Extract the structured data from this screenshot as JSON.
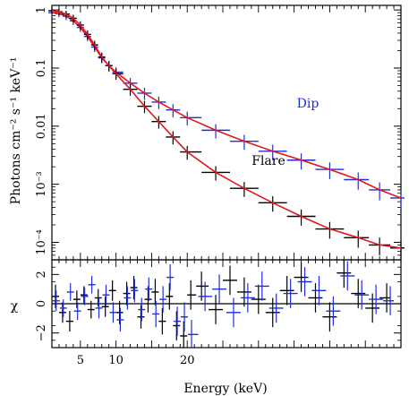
{
  "chart_data": [
    {
      "type": "line",
      "panel": "spectrum",
      "ylabel": "Photons cm⁻² s⁻¹ keV⁻¹",
      "yscale": "log",
      "ylim": [
        5e-05,
        1.2
      ],
      "xlim": [
        1,
        50
      ],
      "yticks": [
        {
          "value": 1,
          "label": "1"
        },
        {
          "value": 0.1,
          "label": "0.1"
        },
        {
          "value": 0.01,
          "label": "0.01"
        },
        {
          "value": 0.001,
          "label": "10⁻³"
        },
        {
          "value": 0.0001,
          "label": "10⁻⁴"
        }
      ],
      "series": [
        {
          "name": "Dip",
          "color": "#1f2fd6",
          "x": [
            1,
            2,
            3,
            4,
            5,
            6,
            7,
            8,
            9,
            10,
            12,
            14,
            16,
            18,
            20,
            24,
            28,
            32,
            36,
            40,
            44,
            47,
            50
          ],
          "y": [
            0.9,
            0.86,
            0.78,
            0.65,
            0.5,
            0.35,
            0.23,
            0.15,
            0.11,
            0.085,
            0.055,
            0.037,
            0.026,
            0.019,
            0.014,
            0.0085,
            0.0055,
            0.0037,
            0.0026,
            0.0018,
            0.0012,
            0.0008,
            0.00058
          ]
        },
        {
          "name": "Flare",
          "color": "#000000",
          "x": [
            1,
            2,
            3,
            4,
            5,
            6,
            7,
            8,
            9,
            10,
            12,
            14,
            16,
            18,
            20,
            24,
            28,
            32,
            36,
            40,
            44,
            47,
            50
          ],
          "y": [
            0.97,
            0.93,
            0.85,
            0.72,
            0.55,
            0.38,
            0.25,
            0.155,
            0.11,
            0.08,
            0.043,
            0.022,
            0.012,
            0.0065,
            0.0036,
            0.0016,
            0.00085,
            0.00048,
            0.00028,
            0.00017,
            0.00012,
            9e-05,
            8e-05
          ]
        }
      ],
      "model_color": "#e3181e",
      "labels": [
        {
          "text": "Dip",
          "color": "#1f2fd6"
        },
        {
          "text": "Flare",
          "color": "#000000"
        }
      ]
    },
    {
      "type": "scatter",
      "panel": "residuals",
      "ylabel": "χ",
      "xlabel": "Energy (keV)",
      "ylim": [
        -3,
        3
      ],
      "xlim": [
        1,
        50
      ],
      "yticks": [
        {
          "value": 2,
          "label": "2"
        },
        {
          "value": 0,
          "label": "0"
        },
        {
          "value": -2,
          "label": "−2"
        }
      ],
      "xticks": [
        {
          "value": 5,
          "label": "5"
        },
        {
          "value": 10,
          "label": "10"
        },
        {
          "value": 20,
          "label": "20"
        }
      ],
      "series": [
        {
          "name": "Flare",
          "color": "#000000",
          "x": [
            1.5,
            2.5,
            3.5,
            4.5,
            5.5,
            6.5,
            7.5,
            8.5,
            9.5,
            10.5,
            11.5,
            12.5,
            13.5,
            14.5,
            15.5,
            16.5,
            17.5,
            18.5,
            19.5,
            20.5,
            22,
            24,
            26,
            28,
            30,
            32,
            34,
            36,
            38,
            40,
            42,
            44,
            46,
            48
          ],
          "y": [
            0.5,
            -0.6,
            -1.2,
            0.3,
            0.6,
            -0.4,
            0.4,
            -0.2,
            0.9,
            -0.6,
            0.7,
            1.1,
            -0.9,
            0.3,
            0.8,
            -1.2,
            0.5,
            -1.5,
            -2.2,
            0.6,
            1.2,
            -0.4,
            1.6,
            0.8,
            0.3,
            -0.6,
            0.9,
            1.8,
            0.4,
            -0.9,
            2.1,
            0.7,
            -0.3,
            0.4
          ],
          "yerr": [
            0.8,
            0.7,
            0.7,
            0.6,
            0.6,
            0.6,
            0.6,
            0.7,
            0.7,
            0.8,
            0.8,
            0.8,
            0.8,
            0.9,
            0.9,
            0.9,
            0.9,
            1.0,
            1.0,
            1.0,
            1.0,
            1.0,
            1.0,
            1.0,
            1.0,
            1.0,
            1.0,
            1.0,
            1.0,
            1.0,
            1.0,
            1.0,
            1.0,
            1.0
          ]
        },
        {
          "name": "Dip",
          "color": "#1f2fd6",
          "x": [
            1.6,
            2.6,
            3.6,
            4.6,
            5.6,
            6.6,
            7.6,
            8.6,
            9.6,
            10.6,
            11.6,
            12.6,
            13.6,
            14.6,
            15.6,
            16.6,
            17.6,
            18.6,
            19.6,
            20.6,
            22.5,
            24.5,
            26.5,
            28.5,
            30.5,
            32.5,
            34.5,
            36.5,
            38.5,
            40.5,
            42.5,
            44.5,
            46.5,
            48.5
          ],
          "y": [
            0.2,
            -0.3,
            0.8,
            -0.5,
            0.5,
            1.3,
            -0.3,
            0.6,
            -0.6,
            -1.1,
            0.4,
            0.9,
            -0.4,
            1.0,
            -0.7,
            0.3,
            1.8,
            -1.2,
            -0.9,
            -2.1,
            0.5,
            1.0,
            -0.6,
            0.4,
            1.2,
            -0.3,
            0.7,
            1.5,
            0.9,
            -0.5,
            1.9,
            0.6,
            0.3,
            0.2
          ],
          "yerr": [
            0.7,
            0.6,
            0.6,
            0.6,
            0.6,
            0.6,
            0.7,
            0.7,
            0.7,
            0.8,
            0.8,
            0.8,
            0.8,
            0.8,
            0.9,
            0.9,
            0.9,
            1.0,
            1.0,
            1.0,
            1.0,
            1.0,
            1.0,
            1.0,
            1.0,
            1.0,
            1.0,
            1.0,
            1.0,
            1.0,
            1.0,
            1.0,
            1.0,
            1.0
          ]
        }
      ]
    }
  ]
}
